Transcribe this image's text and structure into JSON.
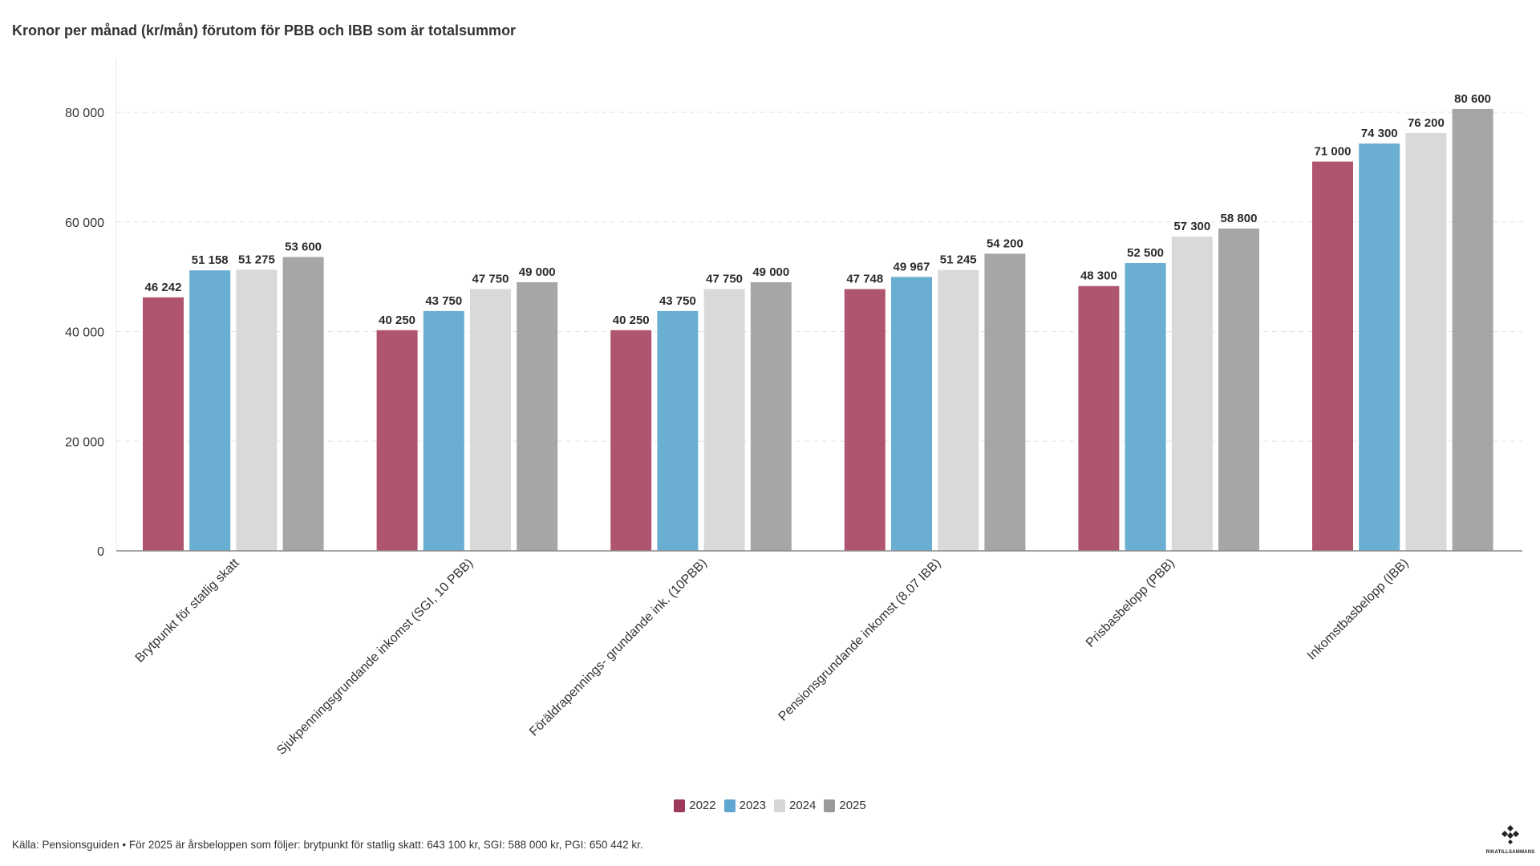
{
  "chart_data": {
    "type": "bar",
    "title": "Kronor per månad (kr/mån) förutom för PBB och IBB som är totalsummor",
    "categories": [
      "Brytpunkt för statlig skatt",
      "Sjukpenningsgrundande inkomst (SGI, 10 PBB)",
      "Föräldrapennings- grundande ink. (10PBB)",
      "Pensionsgrundande inkomst (8.07 IBB)",
      "Prisbasbelopp (PBB)",
      "Inkomstbasbelopp (IBB)"
    ],
    "series": [
      {
        "name": "2022",
        "color": "#b0556f",
        "values": [
          46242,
          40250,
          40250,
          47748,
          48300,
          71000
        ],
        "labels": [
          "46 242",
          "40 250",
          "40 250",
          "47 748",
          "48 300",
          "71 000"
        ]
      },
      {
        "name": "2023",
        "color": "#6aaed2",
        "values": [
          51158,
          43750,
          43750,
          49967,
          52500,
          74300
        ],
        "labels": [
          "51 158",
          "43 750",
          "43 750",
          "49 967",
          "52 500",
          "74 300"
        ]
      },
      {
        "name": "2024",
        "color": "#d9d9d9",
        "values": [
          51275,
          47750,
          47750,
          51245,
          57300,
          76200
        ],
        "labels": [
          "51 275",
          "47 750",
          "47 750",
          "51 245",
          "57 300",
          "76 200"
        ]
      },
      {
        "name": "2025",
        "color": "#a6a7a5",
        "values": [
          53600,
          49000,
          49000,
          54200,
          58800,
          80600
        ],
        "labels": [
          "53 600",
          "49 000",
          "49 000",
          "54 200",
          "58 800",
          "80 600"
        ]
      }
    ],
    "ylim": [
      0,
      80000
    ],
    "yticks": [
      0,
      20000,
      40000,
      60000,
      80000
    ],
    "ytick_labels": [
      "0",
      "20 000",
      "40 000",
      "60 000",
      "80 000"
    ],
    "grid": true,
    "legend_position": "bottom-center"
  },
  "legend": {
    "items": [
      {
        "label": "2022",
        "color": "#9e3a59"
      },
      {
        "label": "2023",
        "color": "#5ea6d0"
      },
      {
        "label": "2024",
        "color": "#d6d6d6"
      },
      {
        "label": "2025",
        "color": "#9a9b99"
      }
    ]
  },
  "footer": {
    "note": "Källa: Pensionsguiden • För 2025 är årsbeloppen som följer: brytpunkt för statlig skatt: 643 100 kr, SGI: 588 000 kr, PGI: 650 442 kr."
  },
  "logo": {
    "text": "RIKATILLSAMMANS"
  }
}
